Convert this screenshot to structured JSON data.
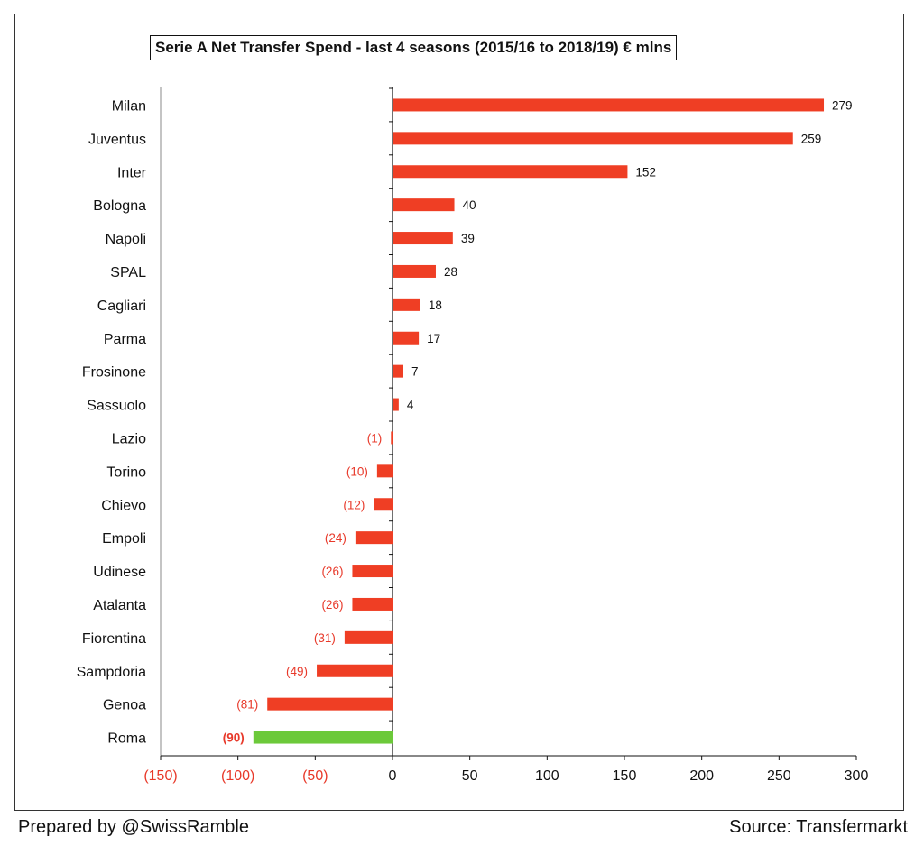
{
  "title": "Serie A Net Transfer Spend - last 4 seasons (2015/16 to 2018/19) € mlns",
  "footer": {
    "left": "Prepared by @SwissRamble",
    "right": "Source: Transfermarkt"
  },
  "colors": {
    "bar": "#ef3e24",
    "highlight": "#6cc93a",
    "negative_text": "#e8392a",
    "positive_text": "#111111",
    "axis": "#111111"
  },
  "chart_data": {
    "type": "bar",
    "orientation": "horizontal",
    "title": "Serie A Net Transfer Spend - last 4 seasons (2015/16 to 2018/19) € mlns",
    "categories": [
      "Milan",
      "Juventus",
      "Inter",
      "Bologna",
      "Napoli",
      "SPAL",
      "Cagliari",
      "Parma",
      "Frosinone",
      "Sassuolo",
      "Lazio",
      "Torino",
      "Chievo",
      "Empoli",
      "Udinese",
      "Atalanta",
      "Fiorentina",
      "Sampdoria",
      "Genoa",
      "Roma"
    ],
    "values": [
      279,
      259,
      152,
      40,
      39,
      28,
      18,
      17,
      7,
      4,
      -1,
      -10,
      -12,
      -24,
      -26,
      -26,
      -31,
      -49,
      -81,
      -90
    ],
    "value_labels": [
      "279",
      "259",
      "152",
      "40",
      "39",
      "28",
      "18",
      "17",
      "7",
      "4",
      "(1)",
      "(10)",
      "(12)",
      "(24)",
      "(26)",
      "(26)",
      "(31)",
      "(49)",
      "(81)",
      "(90)"
    ],
    "highlight": "Roma",
    "xlim": [
      -150,
      300
    ],
    "xticks": [
      -150,
      -100,
      -50,
      0,
      50,
      100,
      150,
      200,
      250,
      300
    ],
    "xtick_labels": [
      "(150)",
      "(100)",
      "(50)",
      "0",
      "50",
      "100",
      "150",
      "200",
      "250",
      "300"
    ],
    "xlabel": "",
    "ylabel": "",
    "grid": false,
    "legend": "none"
  }
}
